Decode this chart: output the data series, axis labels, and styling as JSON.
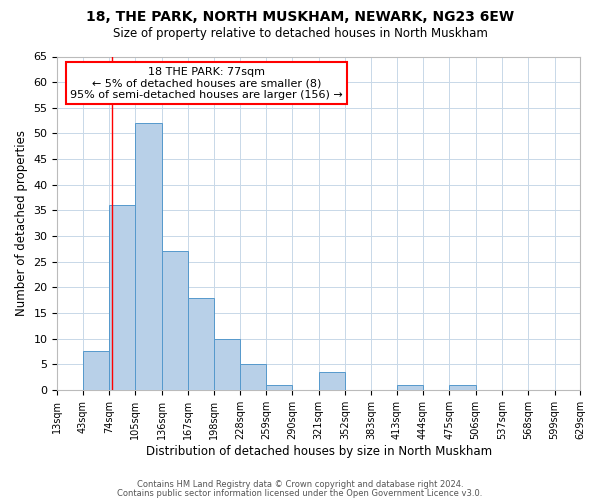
{
  "title": "18, THE PARK, NORTH MUSKHAM, NEWARK, NG23 6EW",
  "subtitle": "Size of property relative to detached houses in North Muskham",
  "xlabel": "Distribution of detached houses by size in North Muskham",
  "ylabel": "Number of detached properties",
  "bin_edges": [
    13,
    43,
    74,
    105,
    136,
    167,
    198,
    228,
    259,
    290,
    321,
    352,
    383,
    413,
    444,
    475,
    506,
    537,
    568,
    599,
    629
  ],
  "bin_counts": [
    0,
    7.5,
    36,
    52,
    27,
    18,
    10,
    5,
    1,
    0,
    3.5,
    0,
    0,
    1,
    0,
    1,
    0,
    0,
    0,
    0
  ],
  "bar_color": "#b8d0e8",
  "bar_edge_color": "#5599cc",
  "property_line_x": 77,
  "annotation_line1": "18 THE PARK: 77sqm",
  "annotation_line2": "← 5% of detached houses are smaller (8)",
  "annotation_line3": "95% of semi-detached houses are larger (156) →",
  "annotation_box_color": "white",
  "annotation_box_edgecolor": "red",
  "property_line_color": "red",
  "ylim": [
    0,
    65
  ],
  "yticks": [
    0,
    5,
    10,
    15,
    20,
    25,
    30,
    35,
    40,
    45,
    50,
    55,
    60,
    65
  ],
  "tick_labels": [
    "13sqm",
    "43sqm",
    "74sqm",
    "105sqm",
    "136sqm",
    "167sqm",
    "198sqm",
    "228sqm",
    "259sqm",
    "290sqm",
    "321sqm",
    "352sqm",
    "383sqm",
    "413sqm",
    "444sqm",
    "475sqm",
    "506sqm",
    "537sqm",
    "568sqm",
    "599sqm",
    "629sqm"
  ],
  "footer1": "Contains HM Land Registry data © Crown copyright and database right 2024.",
  "footer2": "Contains public sector information licensed under the Open Government Licence v3.0.",
  "background_color": "#ffffff",
  "plot_background": "#ffffff",
  "grid_color": "#c8d8e8"
}
